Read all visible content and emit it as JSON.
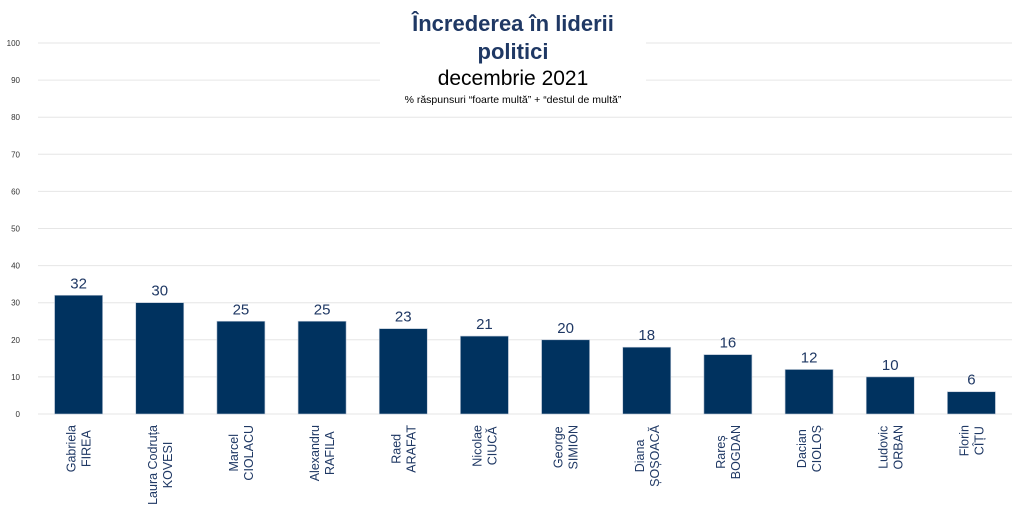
{
  "chart_data": {
    "type": "bar",
    "title": "Încrederea în liderii politici",
    "subtitle": "decembrie 2021",
    "note": "% răspunsuri “foarte multă” + “destul de multă”",
    "categories": [
      [
        "Gabriela",
        "FIREA"
      ],
      [
        "Laura Codruța",
        "KOVESI"
      ],
      [
        "Marcel",
        "CIOLACU"
      ],
      [
        "Alexandru",
        "RAFILA"
      ],
      [
        "Raed",
        "ARAFAT"
      ],
      [
        "Nicolae",
        "CIUCĂ"
      ],
      [
        "George",
        "SIMION"
      ],
      [
        "Diana",
        "ȘOȘOACĂ"
      ],
      [
        "Rareș",
        "BOGDAN"
      ],
      [
        "Dacian",
        "CIOLOȘ"
      ],
      [
        "Ludovic",
        "ORBAN"
      ],
      [
        "Florin",
        "CÎȚU"
      ]
    ],
    "values": [
      32,
      30,
      25,
      25,
      23,
      21,
      20,
      18,
      16,
      12,
      10,
      6
    ],
    "ylim": [
      0,
      100
    ],
    "yticks": [
      0,
      10,
      20,
      30,
      40,
      50,
      60,
      70,
      80,
      90,
      100
    ],
    "grid": true,
    "legend": "none",
    "colors": {
      "bar": "#00325f",
      "title": "#1f3864",
      "labels": "#1f3864"
    }
  }
}
